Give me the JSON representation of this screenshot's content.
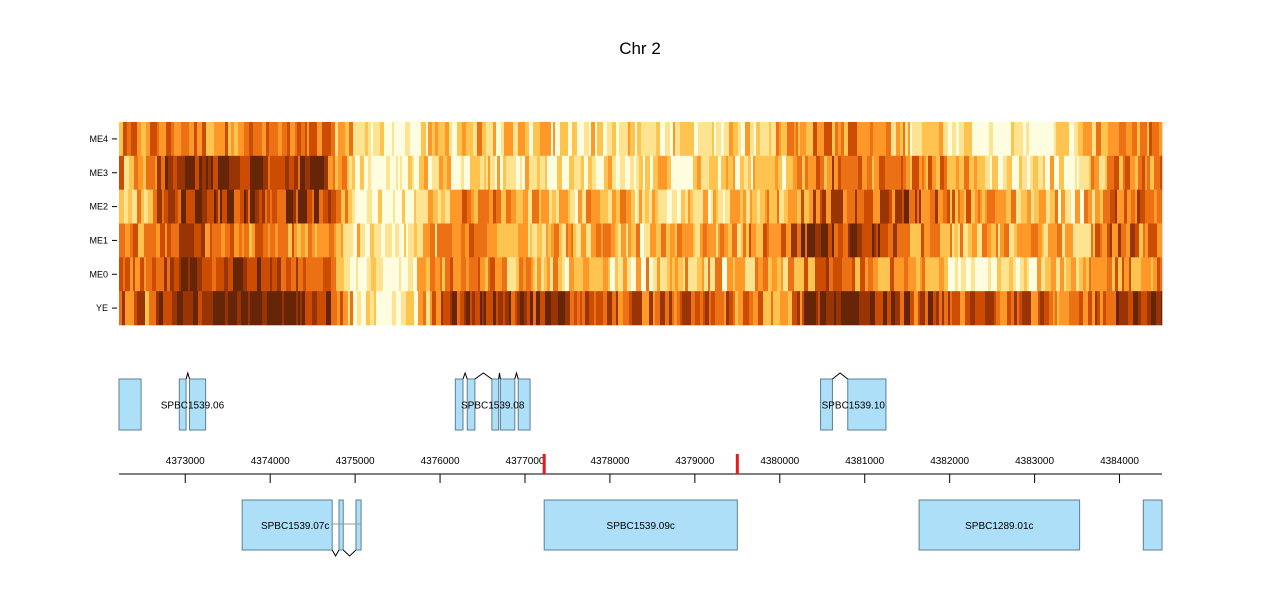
{
  "chart_data": {
    "type": "heatmap",
    "title": "Chr 2",
    "xlabel": "",
    "ylabel": "",
    "xlim": [
      4372220,
      4384500
    ],
    "tracks": [
      "ME4",
      "ME3",
      "ME2",
      "ME1",
      "ME0",
      "YE"
    ],
    "color_scale": [
      "#fffde0",
      "#fee391",
      "#fec44f",
      "#fe9929",
      "#ec7014",
      "#cc4c02",
      "#993404",
      "#662506"
    ],
    "x_ticks": [
      4373000,
      4374000,
      4375000,
      4376000,
      4377000,
      4378000,
      4379000,
      4380000,
      4381000,
      4382000,
      4383000,
      4384000
    ],
    "x_tick_labels": [
      "4373000",
      "4374000",
      "4375000",
      "4376000",
      "4377000",
      "4378000",
      "4379000",
      "4380000",
      "4381000",
      "4382000",
      "4383000",
      "4384000"
    ],
    "markers": [
      {
        "position": 4377226,
        "color": "#e41a1c"
      },
      {
        "position": 4379500,
        "color": "#e41a1c"
      }
    ],
    "intensity_profiles": {
      "ME4": [
        [
          4372220,
          0.45
        ],
        [
          4372500,
          0.5
        ],
        [
          4372800,
          0.55
        ],
        [
          4373100,
          0.5
        ],
        [
          4373500,
          0.55
        ],
        [
          4374000,
          0.5
        ],
        [
          4374600,
          0.5
        ],
        [
          4375000,
          0.3
        ],
        [
          4375300,
          0.1
        ],
        [
          4375500,
          0.05
        ],
        [
          4375800,
          0.15
        ],
        [
          4376000,
          0.35
        ],
        [
          4376500,
          0.3
        ],
        [
          4377000,
          0.25
        ],
        [
          4377500,
          0.2
        ],
        [
          4378000,
          0.2
        ],
        [
          4378500,
          0.15
        ],
        [
          4379000,
          0.2
        ],
        [
          4379500,
          0.25
        ],
        [
          4380000,
          0.4
        ],
        [
          4380500,
          0.55
        ],
        [
          4381000,
          0.45
        ],
        [
          4381500,
          0.35
        ],
        [
          4382000,
          0.25
        ],
        [
          4382500,
          0.1
        ],
        [
          4383000,
          0.05
        ],
        [
          4383500,
          0.25
        ],
        [
          4384000,
          0.55
        ],
        [
          4384300,
          0.45
        ]
      ],
      "ME3": [
        [
          4372220,
          0.45
        ],
        [
          4372500,
          0.4
        ],
        [
          4372800,
          0.75
        ],
        [
          4373100,
          0.9
        ],
        [
          4373500,
          0.85
        ],
        [
          4374000,
          0.8
        ],
        [
          4374600,
          0.8
        ],
        [
          4375000,
          0.2
        ],
        [
          4375300,
          0.05
        ],
        [
          4375500,
          0.05
        ],
        [
          4375800,
          0.25
        ],
        [
          4376000,
          0.3
        ],
        [
          4376500,
          0.25
        ],
        [
          4377000,
          0.2
        ],
        [
          4377500,
          0.15
        ],
        [
          4378000,
          0.2
        ],
        [
          4378500,
          0.2
        ],
        [
          4379000,
          0.2
        ],
        [
          4379500,
          0.25
        ],
        [
          4380000,
          0.3
        ],
        [
          4380500,
          0.55
        ],
        [
          4381000,
          0.55
        ],
        [
          4381500,
          0.55
        ],
        [
          4382000,
          0.45
        ],
        [
          4382500,
          0.2
        ],
        [
          4383000,
          0.2
        ],
        [
          4383500,
          0.2
        ],
        [
          4384000,
          0.6
        ],
        [
          4384300,
          0.55
        ]
      ],
      "ME2": [
        [
          4372220,
          0.45
        ],
        [
          4372500,
          0.4
        ],
        [
          4372800,
          0.7
        ],
        [
          4373100,
          0.9
        ],
        [
          4373500,
          0.8
        ],
        [
          4374000,
          0.75
        ],
        [
          4374600,
          0.75
        ],
        [
          4375000,
          0.2
        ],
        [
          4375300,
          0.05
        ],
        [
          4375500,
          0.05
        ],
        [
          4375800,
          0.3
        ],
        [
          4376000,
          0.4
        ],
        [
          4376500,
          0.5
        ],
        [
          4377000,
          0.4
        ],
        [
          4377500,
          0.3
        ],
        [
          4378000,
          0.35
        ],
        [
          4378500,
          0.3
        ],
        [
          4379000,
          0.3
        ],
        [
          4379500,
          0.3
        ],
        [
          4380000,
          0.45
        ],
        [
          4380500,
          0.65
        ],
        [
          4381000,
          0.6
        ],
        [
          4381500,
          0.7
        ],
        [
          4382000,
          0.55
        ],
        [
          4382500,
          0.4
        ],
        [
          4383000,
          0.35
        ],
        [
          4383500,
          0.3
        ],
        [
          4384000,
          0.65
        ],
        [
          4384300,
          0.6
        ]
      ],
      "ME1": [
        [
          4372220,
          0.55
        ],
        [
          4372500,
          0.4
        ],
        [
          4372800,
          0.6
        ],
        [
          4373100,
          0.7
        ],
        [
          4373500,
          0.5
        ],
        [
          4374000,
          0.45
        ],
        [
          4374600,
          0.5
        ],
        [
          4375000,
          0.2
        ],
        [
          4375300,
          0.05
        ],
        [
          4375500,
          0.05
        ],
        [
          4375800,
          0.3
        ],
        [
          4376000,
          0.45
        ],
        [
          4376500,
          0.55
        ],
        [
          4377000,
          0.4
        ],
        [
          4377500,
          0.35
        ],
        [
          4378000,
          0.35
        ],
        [
          4378500,
          0.3
        ],
        [
          4379000,
          0.35
        ],
        [
          4379500,
          0.4
        ],
        [
          4380000,
          0.55
        ],
        [
          4380500,
          0.8
        ],
        [
          4381000,
          0.75
        ],
        [
          4381500,
          0.55
        ],
        [
          4382000,
          0.45
        ],
        [
          4382500,
          0.35
        ],
        [
          4383000,
          0.4
        ],
        [
          4383500,
          0.35
        ],
        [
          4384000,
          0.6
        ],
        [
          4384300,
          0.55
        ]
      ],
      "ME0": [
        [
          4372220,
          0.5
        ],
        [
          4372500,
          0.45
        ],
        [
          4372800,
          0.7
        ],
        [
          4373100,
          0.85
        ],
        [
          4373500,
          0.75
        ],
        [
          4374000,
          0.7
        ],
        [
          4374600,
          0.7
        ],
        [
          4375000,
          0.15
        ],
        [
          4375300,
          0.05
        ],
        [
          4375500,
          0.05
        ],
        [
          4375800,
          0.35
        ],
        [
          4376000,
          0.55
        ],
        [
          4376500,
          0.45
        ],
        [
          4377000,
          0.35
        ],
        [
          4377500,
          0.3
        ],
        [
          4378000,
          0.3
        ],
        [
          4378500,
          0.3
        ],
        [
          4379000,
          0.35
        ],
        [
          4379500,
          0.3
        ],
        [
          4380000,
          0.4
        ],
        [
          4380500,
          0.55
        ],
        [
          4381000,
          0.5
        ],
        [
          4381500,
          0.4
        ],
        [
          4382000,
          0.25
        ],
        [
          4382500,
          0.15
        ],
        [
          4383000,
          0.2
        ],
        [
          4383500,
          0.25
        ],
        [
          4384000,
          0.55
        ],
        [
          4384300,
          0.5
        ]
      ],
      "YE": [
        [
          4372220,
          0.65
        ],
        [
          4372500,
          0.55
        ],
        [
          4372800,
          0.75
        ],
        [
          4373100,
          0.95
        ],
        [
          4373500,
          0.95
        ],
        [
          4374000,
          0.95
        ],
        [
          4374600,
          0.9
        ],
        [
          4375000,
          0.2
        ],
        [
          4375300,
          0.05
        ],
        [
          4375500,
          0.1
        ],
        [
          4375800,
          0.3
        ],
        [
          4376000,
          0.65
        ],
        [
          4376500,
          0.8
        ],
        [
          4377000,
          0.85
        ],
        [
          4377500,
          0.7
        ],
        [
          4378000,
          0.65
        ],
        [
          4378500,
          0.6
        ],
        [
          4379000,
          0.6
        ],
        [
          4379500,
          0.55
        ],
        [
          4380000,
          0.45
        ],
        [
          4380500,
          0.95
        ],
        [
          4381000,
          0.95
        ],
        [
          4381500,
          0.7
        ],
        [
          4382000,
          0.7
        ],
        [
          4382500,
          0.65
        ],
        [
          4383000,
          0.6
        ],
        [
          4383500,
          0.45
        ],
        [
          4384000,
          0.85
        ],
        [
          4384300,
          0.9
        ]
      ]
    },
    "genes_forward": [
      {
        "name": "",
        "exons": [
          [
            4372220,
            4372480
          ]
        ],
        "label_visible": false
      },
      {
        "name": "SPBC1539.06",
        "exons": [
          [
            4372930,
            4373010
          ],
          [
            4373050,
            4373240
          ]
        ],
        "label_visible": true
      },
      {
        "name": "SPBC1539.08",
        "exons": [
          [
            4376180,
            4376270
          ],
          [
            4376320,
            4376410
          ],
          [
            4376610,
            4376690
          ],
          [
            4376710,
            4376880
          ],
          [
            4376920,
            4377060
          ]
        ],
        "label_visible": true
      },
      {
        "name": "SPBC1539.10",
        "exons": [
          [
            4380480,
            4380620
          ],
          [
            4380800,
            4381250
          ]
        ],
        "label_visible": true
      }
    ],
    "genes_reverse": [
      {
        "name": "SPBC1539.07c",
        "exons": [
          [
            4373670,
            4374730
          ],
          [
            4374810,
            4374860
          ],
          [
            4375010,
            4375070
          ]
        ],
        "label_visible": true
      },
      {
        "name": "SPBC1539.09c",
        "exons": [
          [
            4377226,
            4379500
          ]
        ],
        "label_visible": true
      },
      {
        "name": "SPBC1289.01c",
        "exons": [
          [
            4381640,
            4383530
          ]
        ],
        "label_visible": true
      },
      {
        "name": "",
        "exons": [
          [
            4384280,
            4384500
          ]
        ],
        "label_visible": false
      }
    ],
    "gene_fill": "#addff9",
    "gene_stroke": "#5e7f94"
  }
}
